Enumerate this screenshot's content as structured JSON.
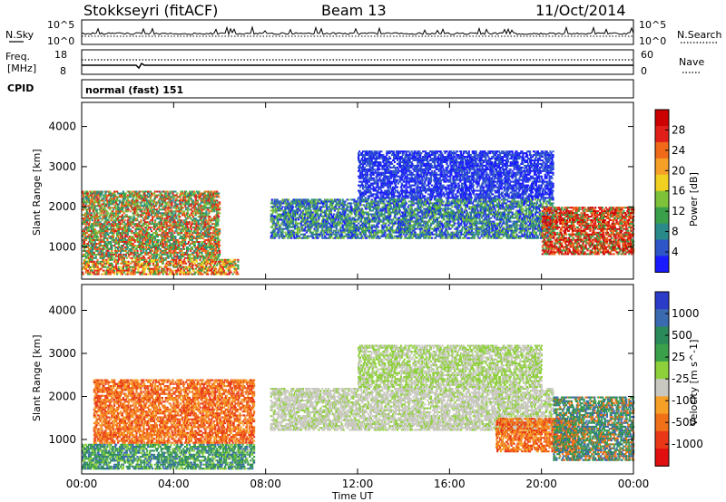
{
  "header": {
    "station": "Stokkseyri (fitACF)",
    "beam": "Beam 13",
    "date": "11/Oct/2014"
  },
  "nsky_panel": {
    "left_label": "N.Sky",
    "right_label": "N.Search",
    "left_top": "10^5",
    "left_bottom": "10^0",
    "right_top": "10^5",
    "right_bottom": "10^0"
  },
  "freq_panel": {
    "left_label_1": "Freq.",
    "left_label_2": "[MHz]",
    "left_top": "18",
    "left_bottom": "8",
    "right_top": "60",
    "right_bottom": "0",
    "right_label": "Nave"
  },
  "cpid_panel": {
    "left_label": "CPID",
    "mode_text": "normal (fast) 151"
  },
  "colors": {
    "frame": "#000000",
    "ground_scatter": "#c8c8c0"
  },
  "chart_data": [
    {
      "type": "heatmap",
      "name": "power",
      "ylabel": "Slant Range [km]",
      "ylim": [
        200,
        4600
      ],
      "y_ticks": [
        "1000",
        "2000",
        "3000",
        "4000"
      ],
      "colorbar_label": "Power [dB]",
      "colorbar_ticks": [
        "4",
        "8",
        "12",
        "16",
        "20",
        "24",
        "28"
      ],
      "colorbar_colors": [
        "#1a1aff",
        "#2e56c8",
        "#2a8a8a",
        "#3aa04a",
        "#7ec23a",
        "#f0d020",
        "#f7a028",
        "#f06a1a",
        "#e02018",
        "#cc0000"
      ],
      "bands": [
        {
          "t0": 0.0,
          "t1": 6.8,
          "r0": 300,
          "r1": 700,
          "colors": [
            "#e02018",
            "#f06a1a",
            "#f0d020",
            "#3aa04a"
          ]
        },
        {
          "t0": 0.0,
          "t1": 6.0,
          "r0": 700,
          "r1": 2400,
          "colors": [
            "#f06a1a",
            "#e02018",
            "#3aa04a",
            "#7ec23a",
            "#2a8a8a"
          ]
        },
        {
          "t0": 8.2,
          "t1": 20.5,
          "r0": 1200,
          "r1": 2200,
          "colors": [
            "#1a1aff",
            "#2e56c8",
            "#2a8a8a",
            "#3aa04a",
            "#7ec23a"
          ]
        },
        {
          "t0": 20.0,
          "t1": 24.0,
          "r0": 800,
          "r1": 2000,
          "colors": [
            "#e02018",
            "#f06a1a",
            "#cc0000",
            "#3aa04a"
          ]
        },
        {
          "t0": 12.0,
          "t1": 20.5,
          "r0": 2200,
          "r1": 3400,
          "colors": [
            "#1a1aff",
            "#2e56c8"
          ]
        }
      ]
    },
    {
      "type": "heatmap",
      "name": "velocity",
      "xlabel": "Time UT",
      "ylabel": "Slant Range [km]",
      "ylim": [
        200,
        4600
      ],
      "x_ticks": [
        "00:00",
        "04:00",
        "08:00",
        "12:00",
        "16:00",
        "20:00",
        "00:00"
      ],
      "y_ticks": [
        "1000",
        "2000",
        "3000",
        "4000"
      ],
      "colorbar_label": "Velocity [m s^-1]",
      "colorbar_ticks": [
        "1000",
        "500",
        "25",
        "-25",
        "-100",
        "-500",
        "-1000"
      ],
      "colorbar_colors": [
        "#2a3cc8",
        "#3a6ab0",
        "#2a8a5a",
        "#3aa04a",
        "#8ed03a",
        "#c8c8c0",
        "#f7a028",
        "#f07018",
        "#e83818",
        "#e01010"
      ],
      "bands": [
        {
          "t0": 0.0,
          "t1": 7.5,
          "r0": 300,
          "r1": 900,
          "colors": [
            "#2a8a5a",
            "#3aa04a",
            "#8ed03a",
            "#3a6ab0"
          ]
        },
        {
          "t0": 0.5,
          "t1": 7.5,
          "r0": 900,
          "r1": 2400,
          "colors": [
            "#f07018",
            "#f7a028",
            "#e83818"
          ]
        },
        {
          "t0": 8.2,
          "t1": 20.5,
          "r0": 1200,
          "r1": 2200,
          "colors": [
            "#c8c8c0",
            "#c8c8c0",
            "#c8c8c0",
            "#8ed03a"
          ]
        },
        {
          "t0": 18.0,
          "t1": 21.5,
          "r0": 700,
          "r1": 1500,
          "colors": [
            "#f07018",
            "#f7a028",
            "#e83818"
          ]
        },
        {
          "t0": 20.5,
          "t1": 24.0,
          "r0": 500,
          "r1": 2000,
          "colors": [
            "#2a8a5a",
            "#3a6ab0",
            "#3aa04a",
            "#f07018"
          ]
        },
        {
          "t0": 12.0,
          "t1": 20.0,
          "r0": 2200,
          "r1": 3200,
          "colors": [
            "#c8c8c0",
            "#8ed03a"
          ]
        }
      ]
    }
  ]
}
